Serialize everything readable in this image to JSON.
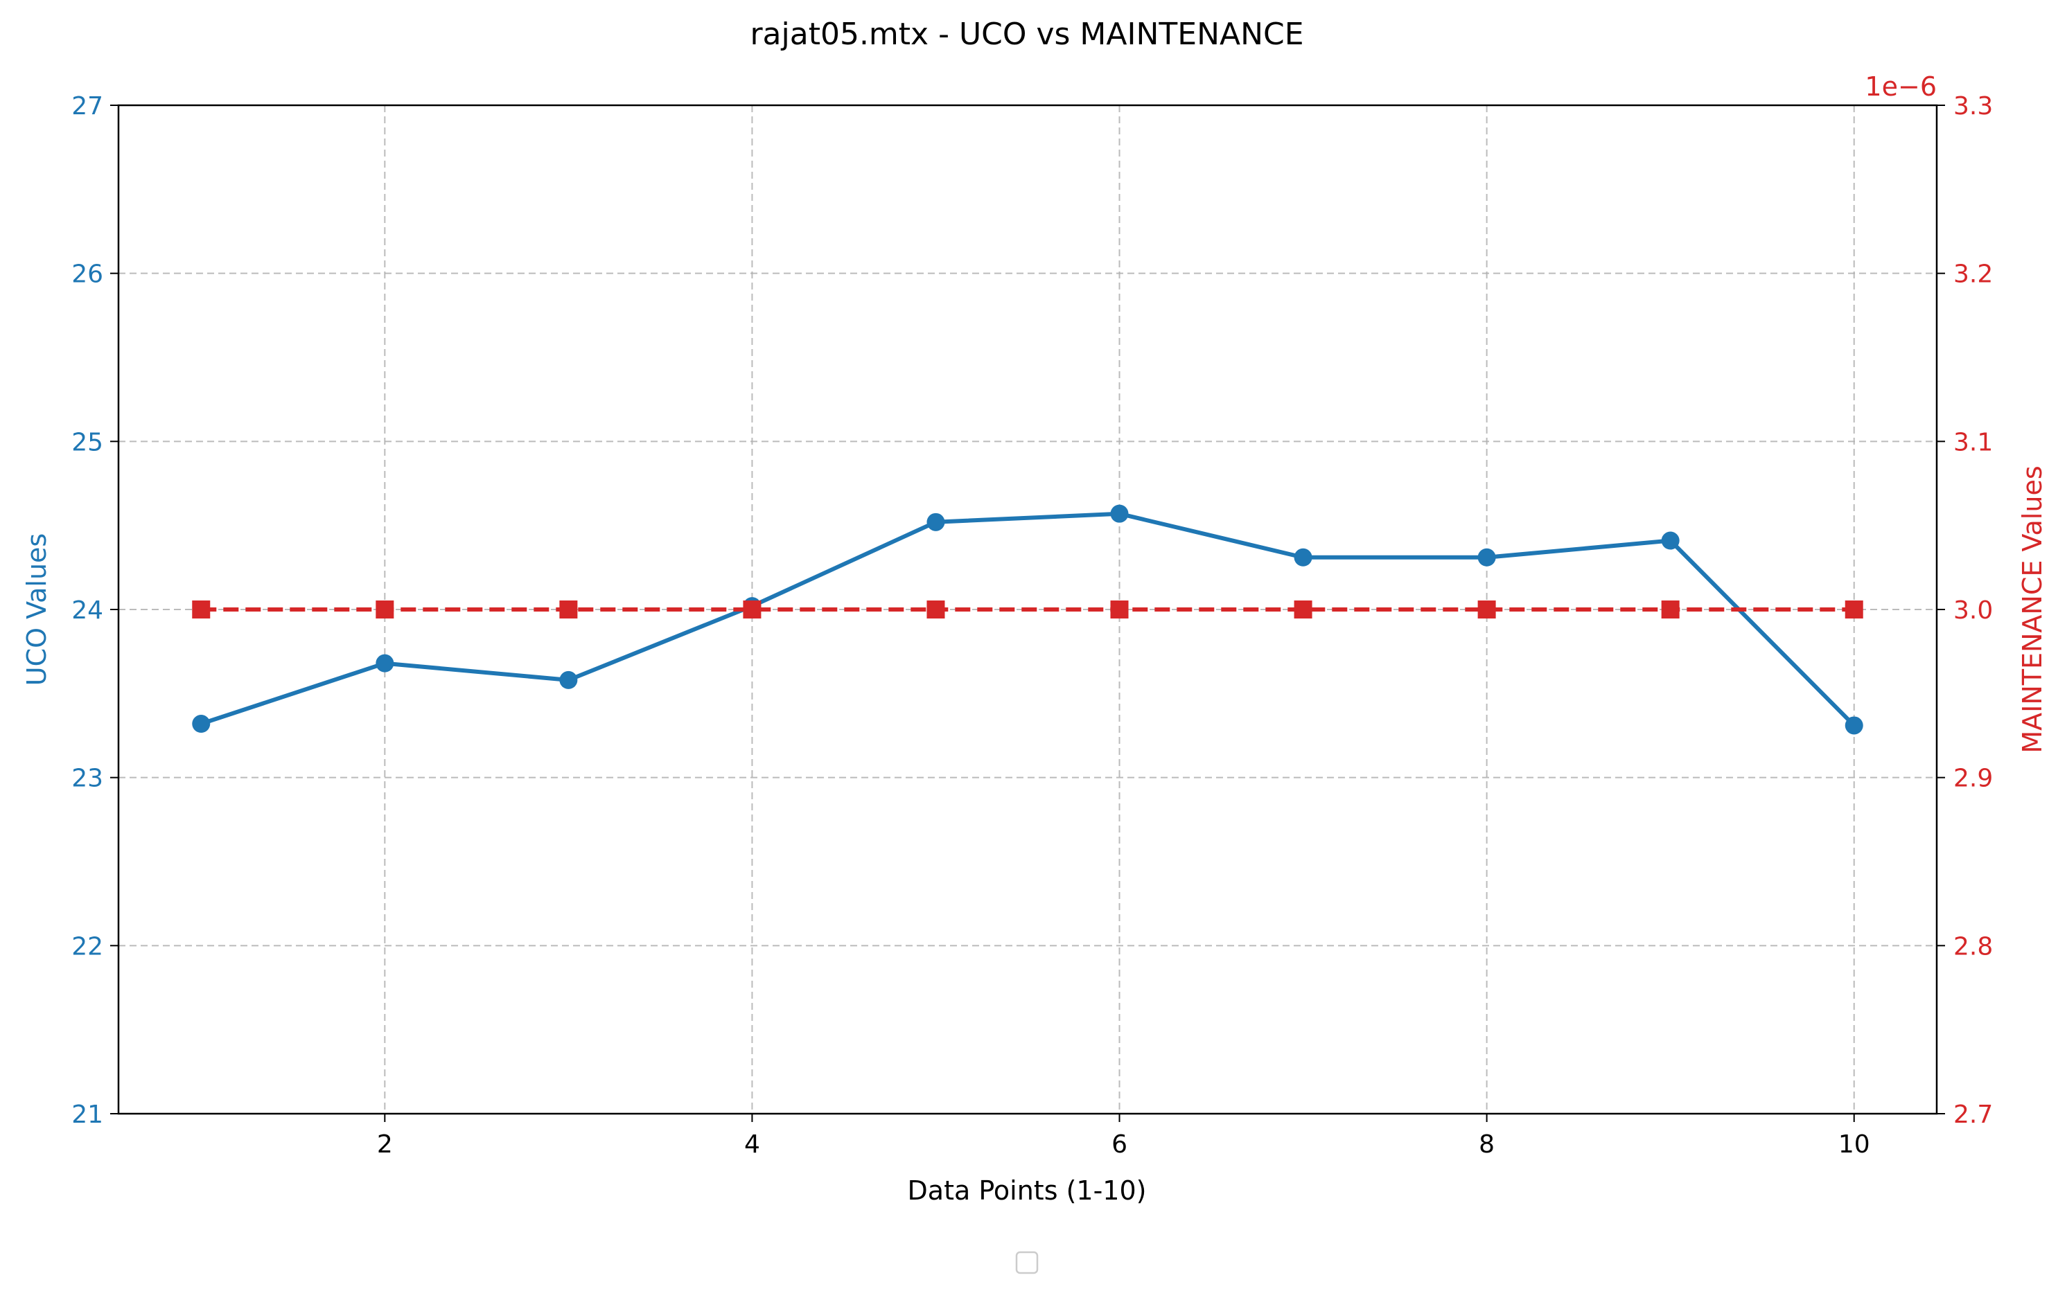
{
  "chart_data": {
    "type": "line",
    "title": "rajat05.mtx - UCO vs MAINTENANCE",
    "xlabel": "Data Points (1-10)",
    "x": [
      1,
      2,
      3,
      4,
      5,
      6,
      7,
      8,
      9,
      10
    ],
    "xlim": [
      0.55,
      10.45
    ],
    "xticks": [
      2,
      4,
      6,
      8,
      10
    ],
    "grid": true,
    "left_axis": {
      "label": "UCO Values",
      "color": "#1f77b4",
      "ylim": [
        21,
        27
      ],
      "ticks": [
        21,
        22,
        23,
        24,
        25,
        26,
        27
      ]
    },
    "right_axis": {
      "label": "MAINTENANCE Values",
      "color": "#d62728",
      "ylim": [
        2.7e-06,
        3.3e-06
      ],
      "ticks": [
        "2.7",
        "2.8",
        "2.9",
        "3.0",
        "3.1",
        "3.2",
        "3.3"
      ],
      "offset_text": "1e−6"
    },
    "series": [
      {
        "axis": "left",
        "color": "#1f77b4",
        "marker": "circle",
        "linestyle": "solid",
        "values": [
          23.32,
          23.68,
          23.58,
          24.02,
          24.52,
          24.57,
          24.31,
          24.31,
          24.41,
          23.31
        ]
      },
      {
        "axis": "right",
        "color": "#d62728",
        "marker": "square",
        "linestyle": "dashed",
        "values": [
          3e-06,
          3e-06,
          3e-06,
          3e-06,
          3e-06,
          3e-06,
          3e-06,
          3e-06,
          3e-06,
          3e-06
        ]
      }
    ],
    "legend": "bottom-center"
  }
}
